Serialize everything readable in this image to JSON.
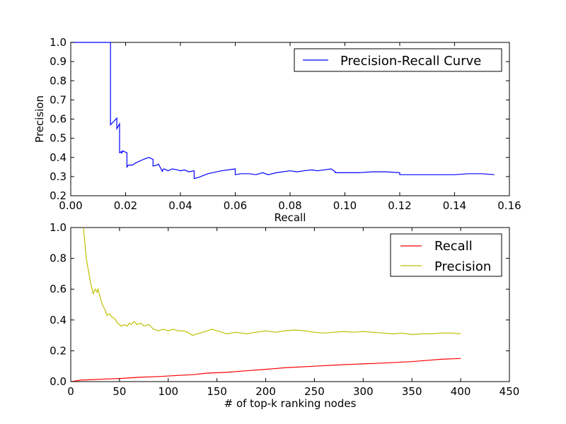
{
  "chart_data": [
    {
      "type": "line",
      "title": "",
      "xlabel": "Recall",
      "ylabel": "Precision",
      "xlim": [
        0.0,
        0.16
      ],
      "ylim": [
        0.2,
        1.0
      ],
      "xticks": [
        "0.00",
        "0.02",
        "0.04",
        "0.06",
        "0.08",
        "0.10",
        "0.12",
        "0.14",
        "0.16"
      ],
      "yticks": [
        "0.2",
        "0.3",
        "0.4",
        "0.5",
        "0.6",
        "0.7",
        "0.8",
        "0.9",
        "1.0"
      ],
      "grid": false,
      "legend_placement": "top-right",
      "series": [
        {
          "name": "Precision-Recall Curve",
          "color": "#0000ff",
          "x": [
            0.0,
            0.0145,
            0.0145,
            0.0168,
            0.0168,
            0.0178,
            0.0178,
            0.0185,
            0.0185,
            0.019,
            0.0195,
            0.0205,
            0.0205,
            0.021,
            0.0225,
            0.0235,
            0.025,
            0.0265,
            0.0285,
            0.03,
            0.03,
            0.0315,
            0.032,
            0.0335,
            0.0335,
            0.034,
            0.0355,
            0.037,
            0.039,
            0.04,
            0.0415,
            0.043,
            0.045,
            0.045,
            0.0465,
            0.05,
            0.055,
            0.06,
            0.06,
            0.062,
            0.065,
            0.0675,
            0.07,
            0.072,
            0.075,
            0.08,
            0.0825,
            0.085,
            0.088,
            0.09,
            0.095,
            0.0965,
            0.0965,
            0.1,
            0.105,
            0.11,
            0.115,
            0.12,
            0.12,
            0.125,
            0.13,
            0.135,
            0.14,
            0.145,
            0.15,
            0.1545
          ],
          "y": [
            1.0,
            1.0,
            0.57,
            0.605,
            0.55,
            0.575,
            0.425,
            0.43,
            0.42,
            0.435,
            0.43,
            0.425,
            0.35,
            0.36,
            0.36,
            0.37,
            0.38,
            0.39,
            0.4,
            0.39,
            0.355,
            0.36,
            0.365,
            0.325,
            0.335,
            0.34,
            0.33,
            0.34,
            0.335,
            0.33,
            0.335,
            0.325,
            0.33,
            0.29,
            0.295,
            0.315,
            0.33,
            0.34,
            0.31,
            0.315,
            0.315,
            0.31,
            0.32,
            0.31,
            0.32,
            0.33,
            0.325,
            0.33,
            0.335,
            0.33,
            0.34,
            0.325,
            0.32,
            0.32,
            0.32,
            0.325,
            0.325,
            0.32,
            0.31,
            0.31,
            0.31,
            0.31,
            0.31,
            0.315,
            0.315,
            0.31
          ]
        }
      ]
    },
    {
      "type": "line",
      "title": "",
      "xlabel": "# of top-k ranking nodes",
      "ylabel": "",
      "xlim": [
        0,
        450
      ],
      "ylim": [
        0.0,
        1.0
      ],
      "xticks": [
        "0",
        "50",
        "100",
        "150",
        "200",
        "250",
        "300",
        "350",
        "400",
        "450"
      ],
      "yticks": [
        "0.0",
        "0.2",
        "0.4",
        "0.6",
        "0.8",
        "1.0"
      ],
      "grid": false,
      "legend_placement": "top-right",
      "series": [
        {
          "name": "Recall",
          "color": "#ff0000",
          "x": [
            1,
            10,
            20,
            30,
            50,
            70,
            90,
            110,
            125,
            140,
            160,
            180,
            200,
            220,
            250,
            280,
            300,
            320,
            350,
            380,
            400
          ],
          "y": [
            0.0,
            0.01,
            0.012,
            0.015,
            0.02,
            0.028,
            0.033,
            0.04,
            0.045,
            0.055,
            0.06,
            0.07,
            0.08,
            0.09,
            0.1,
            0.11,
            0.115,
            0.12,
            0.13,
            0.145,
            0.15
          ]
        },
        {
          "name": "Precision",
          "color": "#bfbf00",
          "x": [
            13,
            16,
            20,
            23,
            25,
            27,
            28,
            31,
            33,
            35,
            37,
            40,
            42,
            45,
            48,
            52,
            55,
            58,
            60,
            62,
            65,
            68,
            72,
            75,
            80,
            85,
            90,
            95,
            100,
            105,
            110,
            115,
            120,
            125,
            130,
            135,
            140,
            145,
            150,
            160,
            170,
            180,
            190,
            200,
            210,
            220,
            230,
            240,
            250,
            260,
            270,
            280,
            290,
            300,
            310,
            320,
            330,
            340,
            350,
            360,
            370,
            380,
            390,
            400
          ],
          "y": [
            1.0,
            0.8,
            0.65,
            0.57,
            0.6,
            0.58,
            0.6,
            0.53,
            0.49,
            0.47,
            0.43,
            0.44,
            0.42,
            0.41,
            0.38,
            0.36,
            0.37,
            0.36,
            0.38,
            0.37,
            0.39,
            0.37,
            0.38,
            0.36,
            0.37,
            0.34,
            0.33,
            0.34,
            0.33,
            0.34,
            0.33,
            0.33,
            0.32,
            0.3,
            0.31,
            0.32,
            0.33,
            0.34,
            0.33,
            0.31,
            0.32,
            0.31,
            0.32,
            0.33,
            0.32,
            0.33,
            0.335,
            0.33,
            0.32,
            0.315,
            0.32,
            0.325,
            0.32,
            0.325,
            0.32,
            0.315,
            0.31,
            0.315,
            0.305,
            0.31,
            0.31,
            0.315,
            0.315,
            0.31
          ]
        }
      ]
    }
  ]
}
